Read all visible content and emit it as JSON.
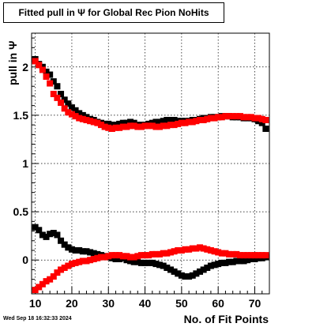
{
  "chart_data": {
    "type": "scatter",
    "title": "Fitted pull in  Ψ  for Global Rec Pion NoHits",
    "xlabel": "No. of Fit Points",
    "ylabel": "pull in  Ψ",
    "xlim": [
      9,
      74
    ],
    "ylim": [
      -0.35,
      2.35
    ],
    "grid": true,
    "x_ticks": [
      10,
      20,
      30,
      40,
      50,
      60,
      70
    ],
    "y_ticks": [
      0,
      0.5,
      1,
      1.5,
      2
    ],
    "x_tick_labels": [
      "10",
      "20",
      "30",
      "40",
      "50",
      "60",
      "70"
    ],
    "y_tick_labels": [
      "0",
      "0.5",
      "1",
      "1.5",
      "2"
    ],
    "x": [
      10,
      11,
      12,
      13,
      14,
      15,
      16,
      17,
      18,
      19,
      20,
      21,
      22,
      23,
      24,
      25,
      26,
      27,
      28,
      29,
      30,
      31,
      32,
      33,
      34,
      35,
      36,
      37,
      38,
      39,
      40,
      41,
      42,
      43,
      44,
      45,
      46,
      47,
      48,
      49,
      50,
      51,
      52,
      53,
      54,
      55,
      56,
      57,
      58,
      59,
      60,
      61,
      62,
      63,
      64,
      65,
      66,
      67,
      68,
      69,
      70,
      71,
      72,
      73
    ],
    "series": [
      {
        "color": "#000000",
        "values": [
          2.08,
          2.03,
          2.0,
          1.95,
          1.92,
          1.85,
          1.8,
          1.72,
          1.66,
          1.62,
          1.58,
          1.55,
          1.52,
          1.5,
          1.48,
          1.46,
          1.45,
          1.43,
          1.42,
          1.41,
          1.41,
          1.4,
          1.4,
          1.41,
          1.42,
          1.42,
          1.43,
          1.42,
          1.4,
          1.4,
          1.4,
          1.41,
          1.42,
          1.43,
          1.43,
          1.44,
          1.45,
          1.45,
          1.45,
          1.44,
          1.44,
          1.44,
          1.44,
          1.45,
          1.45,
          1.46,
          1.47,
          1.47,
          1.48,
          1.48,
          1.48,
          1.49,
          1.49,
          1.49,
          1.48,
          1.48,
          1.48,
          1.47,
          1.47,
          1.47,
          1.46,
          1.44,
          1.42,
          1.36
        ]
      },
      {
        "color": "#ff0000",
        "values": [
          2.06,
          2.02,
          1.97,
          1.9,
          1.83,
          1.72,
          1.68,
          1.63,
          1.57,
          1.53,
          1.51,
          1.49,
          1.47,
          1.46,
          1.45,
          1.44,
          1.43,
          1.42,
          1.4,
          1.38,
          1.37,
          1.36,
          1.37,
          1.37,
          1.38,
          1.38,
          1.39,
          1.39,
          1.38,
          1.38,
          1.39,
          1.39,
          1.39,
          1.38,
          1.38,
          1.39,
          1.39,
          1.4,
          1.4,
          1.41,
          1.42,
          1.42,
          1.43,
          1.43,
          1.44,
          1.45,
          1.45,
          1.46,
          1.47,
          1.47,
          1.48,
          1.48,
          1.49,
          1.49,
          1.49,
          1.49,
          1.49,
          1.48,
          1.48,
          1.48,
          1.47,
          1.47,
          1.46,
          1.45
        ]
      },
      {
        "color": "#000000",
        "values": [
          0.34,
          0.31,
          0.26,
          0.24,
          0.27,
          0.28,
          0.26,
          0.2,
          0.16,
          0.13,
          0.11,
          0.1,
          0.1,
          0.09,
          0.09,
          0.08,
          0.07,
          0.06,
          0.05,
          0.04,
          0.03,
          0.02,
          0.01,
          0.01,
          0.02,
          0.0,
          -0.01,
          -0.02,
          -0.02,
          -0.03,
          -0.03,
          -0.03,
          -0.03,
          -0.04,
          -0.05,
          -0.06,
          -0.08,
          -0.1,
          -0.12,
          -0.14,
          -0.16,
          -0.17,
          -0.17,
          -0.16,
          -0.14,
          -0.12,
          -0.1,
          -0.08,
          -0.06,
          -0.05,
          -0.04,
          -0.03,
          -0.03,
          -0.02,
          -0.02,
          -0.01,
          -0.01,
          -0.01,
          0.0,
          0.01,
          0.01,
          0.02,
          0.02,
          0.03
        ]
      },
      {
        "color": "#ff0000",
        "values": [
          -0.31,
          -0.28,
          -0.25,
          -0.22,
          -0.2,
          -0.17,
          -0.13,
          -0.1,
          -0.08,
          -0.06,
          -0.04,
          -0.03,
          -0.02,
          -0.01,
          -0.01,
          0.0,
          0.01,
          0.02,
          0.03,
          0.03,
          0.04,
          0.05,
          0.05,
          0.05,
          0.04,
          0.04,
          0.03,
          0.03,
          0.04,
          0.05,
          0.05,
          0.05,
          0.06,
          0.06,
          0.06,
          0.07,
          0.07,
          0.08,
          0.09,
          0.1,
          0.1,
          0.11,
          0.11,
          0.12,
          0.12,
          0.13,
          0.12,
          0.11,
          0.1,
          0.09,
          0.08,
          0.07,
          0.07,
          0.06,
          0.06,
          0.06,
          0.05,
          0.05,
          0.05,
          0.05,
          0.05,
          0.05,
          0.05,
          0.05
        ]
      }
    ]
  }
}
